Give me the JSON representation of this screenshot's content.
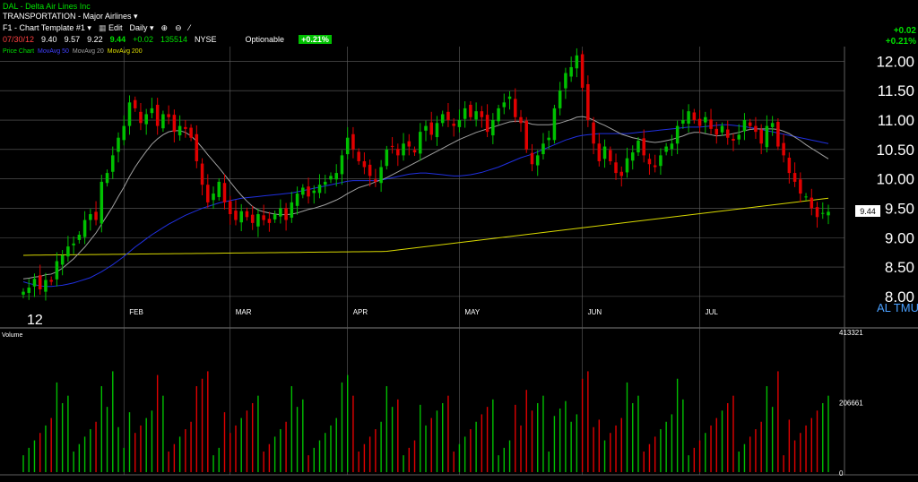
{
  "header": {
    "title": "DAL - Delta Air Lines Inc",
    "sector": "TRANSPORTATION - Major Airlines",
    "template": "F1 - Chart Template #1",
    "edit_label": "Edit",
    "period": "Daily"
  },
  "quote": {
    "date": "07/30/12",
    "open": "9.40",
    "high": "9.57",
    "low": "9.22",
    "last": "9.44",
    "change": "+0.02",
    "volume": "135514",
    "exchange": "NYSE",
    "optionable": "Optionable",
    "pct_change": "+0.21%"
  },
  "top_right": {
    "change": "+0.02",
    "pct": "+0.21%"
  },
  "indicators": {
    "price": "Price Chart",
    "ma50": "MovAvg 50",
    "ma20": "MovAvg 20",
    "ma200": "MovAvg 200"
  },
  "price_badge": "9.44",
  "volume_label": "Volume",
  "volume_ticks": [
    "413321",
    "206661",
    "0"
  ],
  "right_glyphs": "AL TMU",
  "colors": {
    "up": "#00c000",
    "down": "#e00000",
    "ma50": "#2030e0",
    "ma20": "#a0a0a0",
    "ma200": "#d8d800",
    "grid": "#606060"
  },
  "chart_data": {
    "type": "candlestick",
    "ylim": [
      7.8,
      12.25
    ],
    "y_ticks": [
      8.0,
      8.5,
      9.0,
      9.5,
      10.0,
      10.5,
      11.0,
      11.5,
      12.0
    ],
    "y_tick_labels": [
      "8.00",
      "8.50",
      "9.00",
      "9.50",
      "10.00",
      "10.50",
      "11.00",
      "11.50",
      "12.00"
    ],
    "x_labels": [
      {
        "label": "12",
        "day": 0
      },
      {
        "label": "FEB",
        "day": 18
      },
      {
        "label": "MAR",
        "day": 37
      },
      {
        "label": "APR",
        "day": 58
      },
      {
        "label": "MAY",
        "day": 78
      },
      {
        "label": "JUN",
        "day": 100
      },
      {
        "label": "JUL",
        "day": 121
      }
    ],
    "close": [
      8.08,
      8.15,
      8.3,
      8.12,
      8.28,
      8.25,
      8.6,
      8.7,
      8.85,
      8.9,
      9.05,
      9.3,
      9.4,
      9.3,
      9.95,
      10.1,
      10.4,
      10.7,
      10.9,
      11.3,
      11.2,
      10.95,
      11.1,
      11.2,
      10.9,
      11.1,
      11.05,
      10.8,
      10.9,
      10.85,
      10.7,
      10.3,
      9.9,
      9.6,
      9.75,
      9.95,
      9.6,
      9.4,
      9.3,
      9.45,
      9.35,
      9.25,
      9.4,
      9.3,
      9.25,
      9.4,
      9.5,
      9.3,
      9.6,
      9.75,
      9.85,
      9.7,
      9.8,
      9.9,
      9.95,
      10.05,
      10.1,
      10.4,
      10.7,
      10.5,
      10.3,
      10.2,
      10.05,
      9.95,
      10.2,
      10.5,
      10.55,
      10.4,
      10.6,
      10.55,
      10.45,
      10.8,
      10.9,
      10.75,
      10.95,
      11.1,
      11.0,
      10.9,
      11.0,
      11.2,
      11.05,
      11.15,
      11.05,
      10.8,
      11.0,
      11.2,
      11.3,
      11.4,
      11.05,
      10.95,
      10.5,
      10.25,
      10.4,
      10.6,
      10.7,
      11.2,
      11.5,
      11.8,
      11.9,
      12.1,
      11.55,
      11.0,
      10.6,
      10.3,
      10.55,
      10.3,
      10.1,
      10.05,
      10.35,
      10.45,
      10.65,
      10.4,
      10.25,
      10.2,
      10.4,
      10.55,
      10.6,
      10.9,
      11.0,
      11.15,
      11.0,
      10.9,
      11.05,
      10.85,
      10.75,
      10.9,
      10.7,
      10.65,
      10.75,
      11.0,
      10.9,
      10.8,
      10.6,
      10.9,
      10.95,
      10.55,
      10.4,
      10.1,
      9.95,
      9.75,
      9.7,
      9.5,
      9.35,
      9.42,
      9.44
    ],
    "ma20": [
      8.3,
      8.31,
      8.33,
      8.34,
      8.37,
      8.38,
      8.42,
      8.48,
      8.56,
      8.64,
      8.74,
      8.84,
      8.96,
      9.08,
      9.23,
      9.38,
      9.53,
      9.7,
      9.86,
      10.04,
      10.2,
      10.34,
      10.47,
      10.59,
      10.68,
      10.75,
      10.8,
      10.82,
      10.82,
      10.79,
      10.73,
      10.64,
      10.53,
      10.41,
      10.3,
      10.19,
      10.07,
      9.95,
      9.83,
      9.72,
      9.62,
      9.53,
      9.47,
      9.44,
      9.42,
      9.4,
      9.39,
      9.39,
      9.4,
      9.42,
      9.45,
      9.48,
      9.5,
      9.53,
      9.56,
      9.6,
      9.64,
      9.69,
      9.75,
      9.8,
      9.85,
      9.88,
      9.91,
      9.95,
      9.98,
      10.02,
      10.07,
      10.12,
      10.17,
      10.22,
      10.27,
      10.32,
      10.37,
      10.42,
      10.47,
      10.52,
      10.57,
      10.62,
      10.67,
      10.71,
      10.75,
      10.79,
      10.82,
      10.85,
      10.88,
      10.91,
      10.94,
      10.97,
      10.98,
      10.98,
      10.96,
      10.93,
      10.92,
      10.92,
      10.92,
      10.93,
      10.95,
      10.98,
      11.01,
      11.05,
      11.06,
      11.04,
      11.0,
      10.95,
      10.91,
      10.86,
      10.81,
      10.76,
      10.73,
      10.7,
      10.68,
      10.65,
      10.63,
      10.62,
      10.63,
      10.65,
      10.67,
      10.7,
      10.73,
      10.77,
      10.79,
      10.79,
      10.77,
      10.75,
      10.73,
      10.74,
      10.75,
      10.77,
      10.79,
      10.82,
      10.84,
      10.85,
      10.85,
      10.85,
      10.85,
      10.84,
      10.81,
      10.77,
      10.71,
      10.65,
      10.58,
      10.52,
      10.46,
      10.4,
      10.34
    ],
    "ma50": [
      8.25,
      8.22,
      8.2,
      8.18,
      8.17,
      8.17,
      8.18,
      8.19,
      8.21,
      8.23,
      8.26,
      8.29,
      8.32,
      8.37,
      8.42,
      8.48,
      8.54,
      8.61,
      8.68,
      8.76,
      8.84,
      8.91,
      8.98,
      9.05,
      9.11,
      9.17,
      9.23,
      9.28,
      9.33,
      9.38,
      9.42,
      9.46,
      9.5,
      9.53,
      9.56,
      9.59,
      9.61,
      9.63,
      9.65,
      9.67,
      9.68,
      9.69,
      9.7,
      9.71,
      9.72,
      9.73,
      9.74,
      9.75,
      9.76,
      9.78,
      9.8,
      9.82,
      9.84,
      9.86,
      9.88,
      9.9,
      9.92,
      9.94,
      9.96,
      9.97,
      9.97,
      9.97,
      9.97,
      9.97,
      9.98,
      10.0,
      10.02,
      10.04,
      10.06,
      10.08,
      10.09,
      10.1,
      10.1,
      10.09,
      10.08,
      10.07,
      10.06,
      10.05,
      10.05,
      10.06,
      10.07,
      10.09,
      10.11,
      10.14,
      10.17,
      10.2,
      10.24,
      10.28,
      10.32,
      10.36,
      10.39,
      10.42,
      10.46,
      10.5,
      10.54,
      10.58,
      10.62,
      10.66,
      10.69,
      10.72,
      10.74,
      10.75,
      10.76,
      10.77,
      10.77,
      10.77,
      10.77,
      10.77,
      10.77,
      10.78,
      10.79,
      10.8,
      10.81,
      10.82,
      10.83,
      10.84,
      10.85,
      10.86,
      10.87,
      10.88,
      10.88,
      10.88,
      10.89,
      10.9,
      10.91,
      10.92,
      10.92,
      10.91,
      10.9,
      10.89,
      10.87,
      10.86,
      10.84,
      10.82,
      10.8,
      10.78,
      10.76,
      10.74,
      10.72,
      10.7,
      10.68,
      10.66,
      10.64,
      10.62,
      10.6
    ],
    "ma200_start": 8.7,
    "ma200_end": 9.67,
    "volume_max": 413321,
    "volume_ticks": [
      413321,
      206661,
      0
    ]
  }
}
